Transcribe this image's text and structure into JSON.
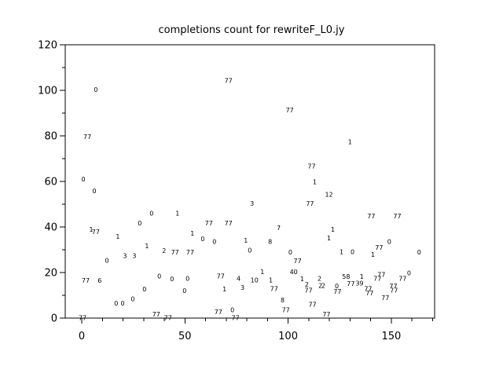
{
  "title": "completions count for rewriteF_L0.jy",
  "colors": {
    "background": "#ffffff",
    "axis": "#000000",
    "text": "#000000"
  },
  "chart_data": {
    "type": "scatter",
    "marker": "numeric-text-labels",
    "title": "completions count for rewriteF_L0.jy",
    "xlabel": "",
    "ylabel": "",
    "grid": false,
    "legend": null,
    "xlim": [
      -8,
      171
    ],
    "ylim": [
      0,
      120
    ],
    "x_major_ticks": [
      0,
      50,
      100,
      150
    ],
    "x_major_labels": [
      "0",
      "50",
      "100",
      "150"
    ],
    "x_minor_ticks": [
      10,
      20,
      30,
      40,
      60,
      70,
      80,
      90,
      110,
      120,
      130,
      140,
      160,
      170
    ],
    "y_major_ticks": [
      0,
      20,
      40,
      60,
      80,
      100,
      120
    ],
    "y_major_labels": [
      "0",
      "20",
      "40",
      "60",
      "80",
      "100",
      "120"
    ],
    "y_minor_ticks": [
      10,
      30,
      50,
      70,
      90,
      110
    ],
    "points": [
      {
        "label": "0",
        "x": 6.8,
        "y": 100.2
      },
      {
        "label": "77",
        "x": 2.7,
        "y": 79.5
      },
      {
        "label": "0",
        "x": 0.8,
        "y": 60.9
      },
      {
        "label": "0",
        "x": 6.1,
        "y": 55.7
      },
      {
        "label": "1",
        "x": 4.6,
        "y": 38.8
      },
      {
        "label": "77",
        "x": 6.8,
        "y": 37.8
      },
      {
        "label": "77",
        "x": 1.9,
        "y": 16.4
      },
      {
        "label": "6",
        "x": 8.7,
        "y": 16.4
      },
      {
        "label": "77",
        "x": 0.4,
        "y": 0
      },
      {
        "label": "0",
        "x": 12.2,
        "y": 25.3
      },
      {
        "label": "1",
        "x": 17.5,
        "y": 35.7
      },
      {
        "label": "3",
        "x": 20.9,
        "y": 27.4
      },
      {
        "label": "3",
        "x": 25.5,
        "y": 27.4
      },
      {
        "label": "0",
        "x": 16.7,
        "y": 6.4
      },
      {
        "label": "0",
        "x": 19.8,
        "y": 6.4
      },
      {
        "label": "0",
        "x": 24.7,
        "y": 8.4
      },
      {
        "label": "0",
        "x": 28.1,
        "y": 41.6
      },
      {
        "label": "0",
        "x": 30.4,
        "y": 12.6
      },
      {
        "label": "0",
        "x": 33.8,
        "y": 46.0
      },
      {
        "label": "1",
        "x": 31.6,
        "y": 31.6
      },
      {
        "label": "2",
        "x": 39.9,
        "y": 29.5
      },
      {
        "label": "0",
        "x": 37.6,
        "y": 18.4
      },
      {
        "label": "77",
        "x": 36.1,
        "y": 1.6
      },
      {
        "label": "77",
        "x": 41.8,
        "y": 0
      },
      {
        "label": "0",
        "x": 43.7,
        "y": 17.1
      },
      {
        "label": "1",
        "x": 46.4,
        "y": 46.0
      },
      {
        "label": "77",
        "x": 45.2,
        "y": 28.8
      },
      {
        "label": "77",
        "x": 52.5,
        "y": 28.8
      },
      {
        "label": "0",
        "x": 51.3,
        "y": 17.4
      },
      {
        "label": "0",
        "x": 49.8,
        "y": 11.9
      },
      {
        "label": "1",
        "x": 53.6,
        "y": 37.1
      },
      {
        "label": "0",
        "x": 58.6,
        "y": 34.7
      },
      {
        "label": "0",
        "x": 64.3,
        "y": 33.6
      },
      {
        "label": "77",
        "x": 61.6,
        "y": 41.6
      },
      {
        "label": "77",
        "x": 71.1,
        "y": 41.6
      },
      {
        "label": "77",
        "x": 71.1,
        "y": 104.3
      },
      {
        "label": "77",
        "x": 67.3,
        "y": 18.4
      },
      {
        "label": "1",
        "x": 69.2,
        "y": 12.6
      },
      {
        "label": "77",
        "x": 66.2,
        "y": 2.6
      },
      {
        "label": "0",
        "x": 73.0,
        "y": 3.6
      },
      {
        "label": "77",
        "x": 74.5,
        "y": 0
      },
      {
        "label": "4",
        "x": 76.0,
        "y": 17.4
      },
      {
        "label": "3",
        "x": 77.9,
        "y": 13.3
      },
      {
        "label": "1",
        "x": 79.5,
        "y": 34.0
      },
      {
        "label": "0",
        "x": 81.4,
        "y": 29.8
      },
      {
        "label": "3",
        "x": 82.5,
        "y": 50.2
      },
      {
        "label": "1",
        "x": 87.5,
        "y": 20.2
      },
      {
        "label": "10",
        "x": 83.7,
        "y": 16.7
      },
      {
        "label": "1",
        "x": 91.6,
        "y": 16.7
      },
      {
        "label": "8",
        "x": 91.3,
        "y": 33.6
      },
      {
        "label": "7",
        "x": 95.4,
        "y": 39.5
      },
      {
        "label": "77",
        "x": 93.2,
        "y": 12.9
      },
      {
        "label": "8",
        "x": 97.3,
        "y": 7.8
      },
      {
        "label": "77",
        "x": 98.9,
        "y": 3.6
      },
      {
        "label": "77",
        "x": 100.8,
        "y": 91.2
      },
      {
        "label": "0",
        "x": 101.1,
        "y": 28.8
      },
      {
        "label": "77",
        "x": 104.6,
        "y": 25.0
      },
      {
        "label": "40",
        "x": 102.7,
        "y": 20.2
      },
      {
        "label": "1",
        "x": 106.8,
        "y": 17.1
      },
      {
        "label": "2",
        "x": 109.1,
        "y": 14.7
      },
      {
        "label": "77",
        "x": 109.9,
        "y": 12.2
      },
      {
        "label": "77",
        "x": 110.6,
        "y": 50.2
      },
      {
        "label": "77",
        "x": 111.4,
        "y": 66.7
      },
      {
        "label": "1",
        "x": 112.9,
        "y": 59.8
      },
      {
        "label": "12",
        "x": 119.8,
        "y": 54.3
      },
      {
        "label": "1",
        "x": 119.8,
        "y": 35.0
      },
      {
        "label": "1",
        "x": 121.7,
        "y": 38.8
      },
      {
        "label": "77",
        "x": 111.8,
        "y": 6.0
      },
      {
        "label": "2",
        "x": 115.2,
        "y": 17.4
      },
      {
        "label": "2",
        "x": 115.6,
        "y": 14.3
      },
      {
        "label": "2",
        "x": 117.1,
        "y": 14.3
      },
      {
        "label": "77",
        "x": 118.6,
        "y": 1.6
      },
      {
        "label": "0",
        "x": 123.6,
        "y": 14.0
      },
      {
        "label": "77",
        "x": 123.9,
        "y": 11.6
      },
      {
        "label": "1",
        "x": 125.9,
        "y": 29.1
      },
      {
        "label": "0",
        "x": 131.2,
        "y": 29.1
      },
      {
        "label": "1",
        "x": 130.0,
        "y": 77.4
      },
      {
        "label": "58",
        "x": 128.1,
        "y": 18.1
      },
      {
        "label": "77",
        "x": 130.4,
        "y": 15.0
      },
      {
        "label": "39",
        "x": 134.6,
        "y": 15.3
      },
      {
        "label": "1",
        "x": 135.7,
        "y": 18.1
      },
      {
        "label": "77",
        "x": 138.8,
        "y": 12.9
      },
      {
        "label": "77",
        "x": 139.5,
        "y": 10.9
      },
      {
        "label": "1",
        "x": 141.1,
        "y": 27.8
      },
      {
        "label": "77",
        "x": 144.1,
        "y": 30.9
      },
      {
        "label": "77",
        "x": 140.3,
        "y": 44.7
      },
      {
        "label": "77",
        "x": 145.2,
        "y": 19.1
      },
      {
        "label": "77",
        "x": 143.3,
        "y": 17.4
      },
      {
        "label": "77",
        "x": 147.1,
        "y": 8.8
      },
      {
        "label": "0",
        "x": 149.0,
        "y": 33.6
      },
      {
        "label": "77",
        "x": 152.9,
        "y": 44.7
      },
      {
        "label": "77",
        "x": 151.0,
        "y": 14.0
      },
      {
        "label": "77",
        "x": 151.3,
        "y": 12.2
      },
      {
        "label": "77",
        "x": 155.5,
        "y": 17.4
      },
      {
        "label": "0",
        "x": 158.6,
        "y": 19.8
      },
      {
        "label": "0",
        "x": 163.5,
        "y": 28.8
      }
    ]
  }
}
